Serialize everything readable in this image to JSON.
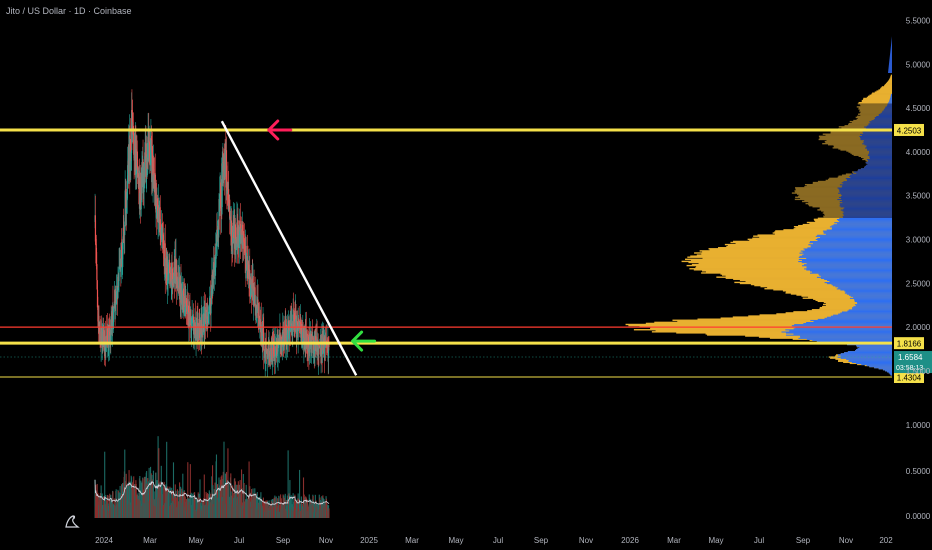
{
  "header": {
    "title": "Jito / US Dollar · 1D · Coinbase"
  },
  "colors": {
    "background": "#000000",
    "up_candle": "#26a69a",
    "down_candle": "#ef5350",
    "support_line": "#f5e14a",
    "red_line": "#ff3b30",
    "trend_line": "#ffffff",
    "vp_upper_blue": "#2962ff",
    "vp_gold": "#e8b030",
    "vp_blue": "#2f6ff0",
    "arrow_red": "#ff1e5a",
    "arrow_green": "#32e040",
    "badge_price": "#1e8f87"
  },
  "chart_data": {
    "type": "candlestick",
    "title": "Jito / US Dollar · 1D · Coinbase",
    "x_ticks": [
      "2024",
      "Mar",
      "May",
      "Jul",
      "Sep",
      "Nov",
      "2025",
      "Mar",
      "May",
      "Jul",
      "Sep",
      "Nov",
      "2026",
      "Mar",
      "May",
      "Jul",
      "Sep",
      "Nov",
      "202"
    ],
    "y_ticks": [
      5.5,
      5.0,
      4.5,
      4.0,
      3.5,
      3.0,
      2.5,
      2.0,
      1.5
    ],
    "y_tick_labels": [
      "5.5000",
      "5.0000",
      "4.5000",
      "4.0000",
      "3.5000",
      "3.0000",
      "2.5000",
      "2.0000",
      "1.5000"
    ],
    "ylim": [
      1.4,
      5.55
    ],
    "volume_ticks": [
      "1.0000",
      "0.5000",
      "0.0000"
    ],
    "horizontal_levels": [
      {
        "price": 4.2503,
        "label": "4.2503",
        "color": "yellow"
      },
      {
        "price": 2.0,
        "label": "",
        "color": "red"
      },
      {
        "price": 1.8166,
        "label": "1.8166",
        "color": "yellow"
      },
      {
        "price": 1.4304,
        "label": "1.4304",
        "color": "yellow"
      }
    ],
    "current_price": {
      "value": "1.6584",
      "countdown": "03:58:13"
    },
    "trend_line": {
      "from": {
        "date": "2024-11-25",
        "price": 4.35
      },
      "to": {
        "date": "2025-12-05",
        "price": 1.45
      }
    },
    "arrows": [
      {
        "direction": "left",
        "color": "red",
        "date": "2025-04-05",
        "price": 4.25
      },
      {
        "direction": "left",
        "color": "green",
        "date": "2025-11-25",
        "price": 1.84
      }
    ],
    "price_path": [
      {
        "date": "2023-12-07",
        "price": 3.2
      },
      {
        "date": "2023-12-15",
        "price": 2.0
      },
      {
        "date": "2024-01-05",
        "price": 1.8
      },
      {
        "date": "2024-01-20",
        "price": 2.0
      },
      {
        "date": "2024-02-15",
        "price": 2.6
      },
      {
        "date": "2024-03-05",
        "price": 3.6
      },
      {
        "date": "2024-03-20",
        "price": 4.3
      },
      {
        "date": "2024-04-10",
        "price": 3.5
      },
      {
        "date": "2024-05-05",
        "price": 4.1
      },
      {
        "date": "2024-05-25",
        "price": 3.5
      },
      {
        "date": "2024-06-25",
        "price": 2.6
      },
      {
        "date": "2024-07-20",
        "price": 2.6
      },
      {
        "date": "2024-08-15",
        "price": 2.2
      },
      {
        "date": "2024-09-15",
        "price": 1.95
      },
      {
        "date": "2024-10-20",
        "price": 2.1
      },
      {
        "date": "2024-11-20",
        "price": 3.4
      },
      {
        "date": "2024-12-05",
        "price": 3.9
      },
      {
        "date": "2024-12-20",
        "price": 3.1
      },
      {
        "date": "2025-01-20",
        "price": 3.0
      },
      {
        "date": "2025-02-10",
        "price": 2.5
      },
      {
        "date": "2025-03-05",
        "price": 2.2
      },
      {
        "date": "2025-03-25",
        "price": 1.75
      },
      {
        "date": "2025-04-15",
        "price": 1.7
      },
      {
        "date": "2025-05-15",
        "price": 1.85
      },
      {
        "date": "2025-06-15",
        "price": 2.05
      },
      {
        "date": "2025-07-15",
        "price": 1.85
      },
      {
        "date": "2025-08-15",
        "price": 1.8
      },
      {
        "date": "2025-09-20",
        "price": 1.75
      }
    ],
    "grid": false
  }
}
